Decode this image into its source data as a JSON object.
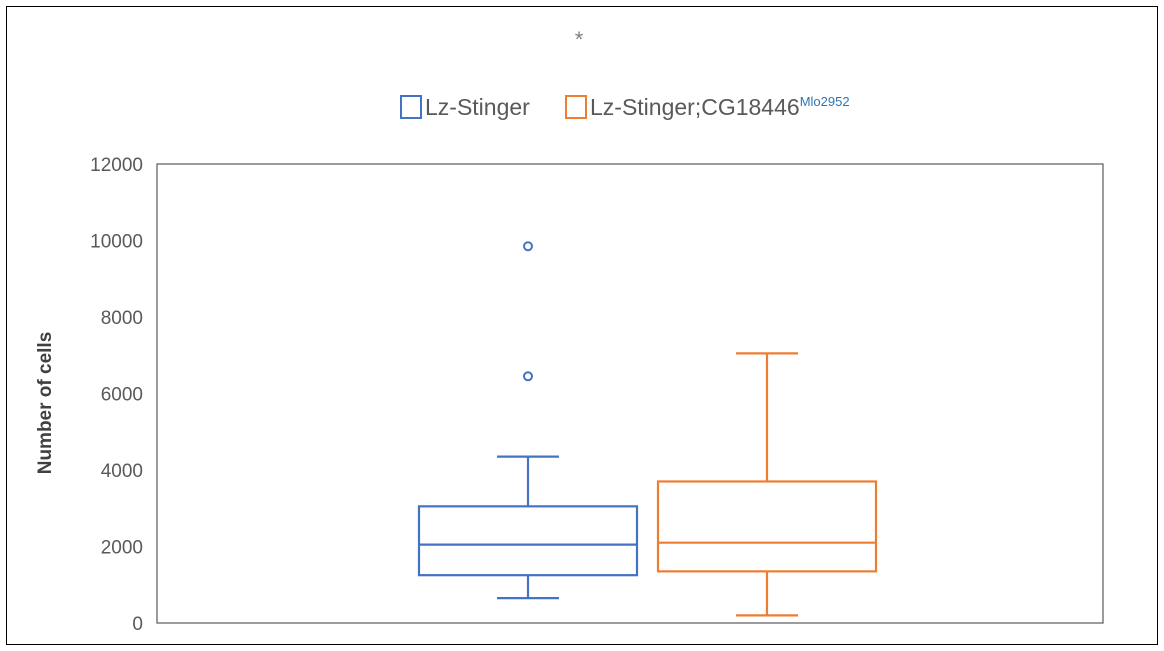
{
  "chart_data": {
    "type": "box",
    "annotation": "*",
    "ylabel": "Number of cells",
    "ylim": [
      0,
      12000
    ],
    "yticks": [
      0,
      2000,
      4000,
      6000,
      8000,
      10000,
      12000
    ],
    "grid": false,
    "legend_position": "top",
    "series": [
      {
        "name": "Lz-Stinger",
        "name_sup": "",
        "color": "#4472c4",
        "whisker_low": 650,
        "q1": 1250,
        "median": 2050,
        "q3": 3050,
        "whisker_high": 4350,
        "outliers": [
          6450,
          9850
        ]
      },
      {
        "name": "Lz-Stinger;CG18446",
        "name_sup": "Mlo2952",
        "color": "#ed7d31",
        "whisker_low": 200,
        "q1": 1350,
        "median": 2100,
        "q3": 3700,
        "whisker_high": 7050,
        "outliers": []
      }
    ]
  }
}
